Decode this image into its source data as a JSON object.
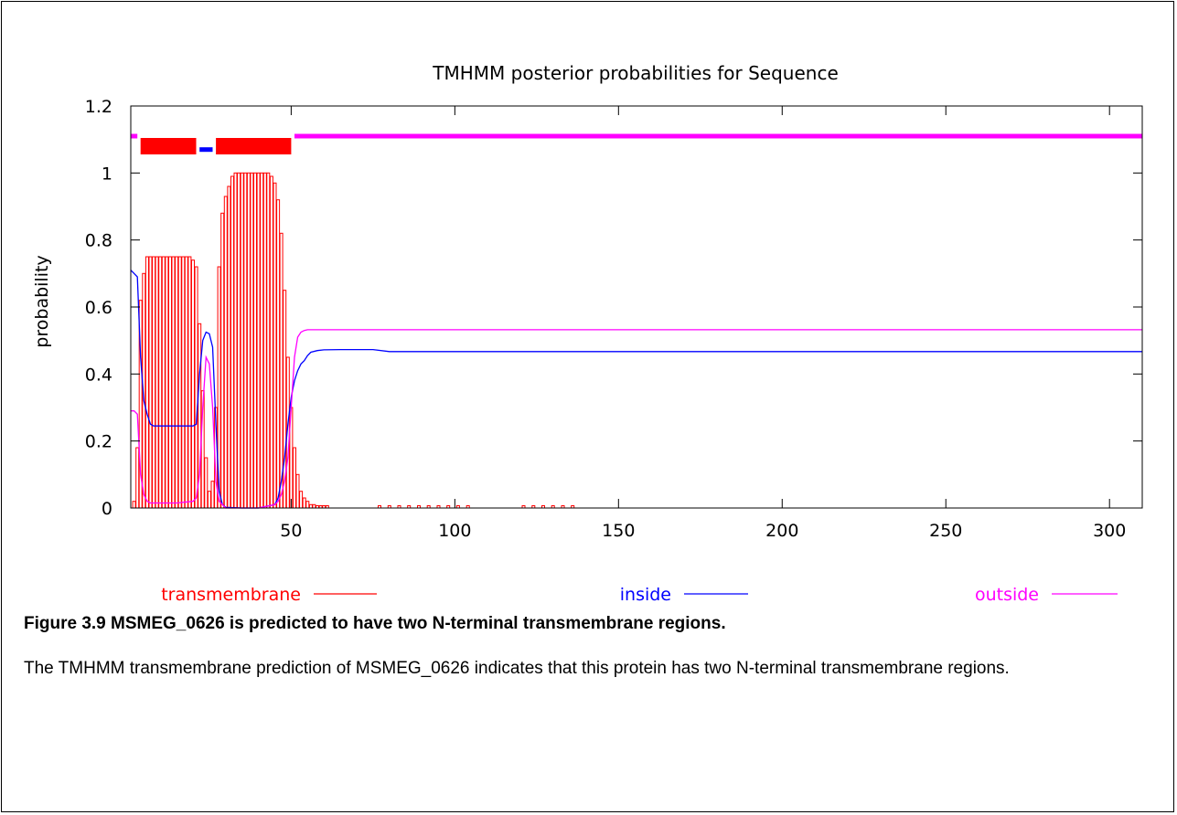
{
  "chart_data": {
    "type": "line",
    "title": "TMHMM posterior probabilities for Sequence",
    "ylabel": "probability",
    "xlabel": "",
    "xlim": [
      1,
      310
    ],
    "ylim": [
      0,
      1.2
    ],
    "xticks": [
      50,
      100,
      150,
      200,
      250,
      300
    ],
    "yticks": [
      0,
      0.2,
      0.4,
      0.6,
      0.8,
      1,
      1.2
    ],
    "ytick_labels": [
      "0",
      "0.2",
      "0.4",
      "0.6",
      "0.8",
      "1",
      "1.2"
    ],
    "grid": false,
    "legend": [
      {
        "name": "transmembrane",
        "color": "#ff0000"
      },
      {
        "name": "inside",
        "color": "#0000ff"
      },
      {
        "name": "outside",
        "color": "#ff00ff"
      }
    ],
    "topology": [
      {
        "type": "outside",
        "start": 1,
        "end": 3,
        "y": 1.11
      },
      {
        "type": "transmembrane",
        "start": 4,
        "end": 21,
        "y": 1.08
      },
      {
        "type": "inside",
        "start": 22,
        "end": 26,
        "y": 1.07
      },
      {
        "type": "transmembrane",
        "start": 27,
        "end": 50,
        "y": 1.08
      },
      {
        "type": "outside",
        "start": 51,
        "end": 310,
        "y": 1.11
      }
    ],
    "series": [
      {
        "name": "transmembrane",
        "color": "#ff0000",
        "style": "impulse",
        "x": [
          2,
          3,
          4,
          5,
          6,
          7,
          8,
          9,
          10,
          11,
          12,
          13,
          14,
          15,
          16,
          17,
          18,
          19,
          20,
          21,
          22,
          23,
          24,
          25,
          26,
          27,
          28,
          29,
          30,
          31,
          32,
          33,
          34,
          35,
          36,
          37,
          38,
          39,
          40,
          41,
          42,
          43,
          44,
          45,
          46,
          47,
          48,
          49,
          50,
          51,
          52,
          53,
          54,
          55,
          56,
          57,
          58,
          59,
          60,
          61
        ],
        "values": [
          0.02,
          0.18,
          0.62,
          0.7,
          0.75,
          0.75,
          0.75,
          0.75,
          0.75,
          0.75,
          0.75,
          0.75,
          0.75,
          0.75,
          0.75,
          0.75,
          0.75,
          0.75,
          0.74,
          0.72,
          0.55,
          0.35,
          0.15,
          0.05,
          0.08,
          0.3,
          0.72,
          0.88,
          0.93,
          0.96,
          0.99,
          1.0,
          1.0,
          1.0,
          1.0,
          1.0,
          1.0,
          1.0,
          1.0,
          1.0,
          1.0,
          1.0,
          0.99,
          0.97,
          0.92,
          0.82,
          0.65,
          0.45,
          0.3,
          0.18,
          0.1,
          0.05,
          0.03,
          0.02,
          0.01,
          0.01,
          0.005,
          0.005,
          0.003,
          0.002
        ]
      },
      {
        "name": "transmembrane-tail",
        "color": "#ff0000",
        "style": "impulse",
        "x": [
          77,
          80,
          83,
          86,
          89,
          92,
          95,
          98,
          101,
          104,
          121,
          124,
          127,
          130,
          133,
          136
        ],
        "values": [
          0.006,
          0.006,
          0.006,
          0.006,
          0.006,
          0.006,
          0.006,
          0.006,
          0.006,
          0.005,
          0.005,
          0.005,
          0.005,
          0.005,
          0.005,
          0.005
        ]
      },
      {
        "name": "inside",
        "color": "#0000ff",
        "style": "line",
        "x": [
          1,
          2,
          3,
          4,
          5,
          6,
          7,
          8,
          10,
          15,
          20,
          21,
          22,
          23,
          24,
          25,
          26,
          27,
          28,
          29,
          30,
          35,
          40,
          45,
          46,
          47,
          48,
          49,
          50,
          51,
          52,
          53,
          54,
          55,
          56,
          58,
          60,
          65,
          70,
          75,
          80,
          100,
          150,
          200,
          250,
          310
        ],
        "values": [
          0.71,
          0.7,
          0.69,
          0.45,
          0.32,
          0.28,
          0.25,
          0.245,
          0.245,
          0.245,
          0.245,
          0.25,
          0.4,
          0.5,
          0.525,
          0.52,
          0.48,
          0.25,
          0.05,
          0.01,
          0.002,
          0.0,
          0.0,
          0.01,
          0.03,
          0.08,
          0.15,
          0.25,
          0.33,
          0.38,
          0.41,
          0.43,
          0.44,
          0.455,
          0.465,
          0.47,
          0.472,
          0.473,
          0.473,
          0.473,
          0.467,
          0.467,
          0.467,
          0.467,
          0.467,
          0.467
        ]
      },
      {
        "name": "outside",
        "color": "#ff00ff",
        "style": "line",
        "x": [
          1,
          2,
          3,
          4,
          5,
          6,
          7,
          8,
          10,
          15,
          20,
          21,
          22,
          23,
          24,
          25,
          26,
          27,
          28,
          30,
          35,
          40,
          45,
          46,
          47,
          48,
          49,
          50,
          51,
          52,
          53,
          54,
          55,
          58,
          60,
          80,
          100,
          150,
          200,
          250,
          310
        ],
        "values": [
          0.29,
          0.29,
          0.28,
          0.1,
          0.04,
          0.02,
          0.015,
          0.015,
          0.015,
          0.015,
          0.02,
          0.03,
          0.1,
          0.3,
          0.45,
          0.43,
          0.3,
          0.08,
          0.02,
          0.0,
          0.0,
          0.0,
          0.01,
          0.02,
          0.04,
          0.08,
          0.15,
          0.3,
          0.45,
          0.51,
          0.525,
          0.53,
          0.532,
          0.532,
          0.532,
          0.532,
          0.532,
          0.532,
          0.532,
          0.532,
          0.532
        ]
      }
    ]
  },
  "caption": {
    "title": "Figure 3.9 MSMEG_0626 is predicted to have two N-terminal transmembrane regions.",
    "body": "The TMHMM transmembrane prediction of MSMEG_0626 indicates that this protein has two N-terminal transmembrane regions."
  }
}
